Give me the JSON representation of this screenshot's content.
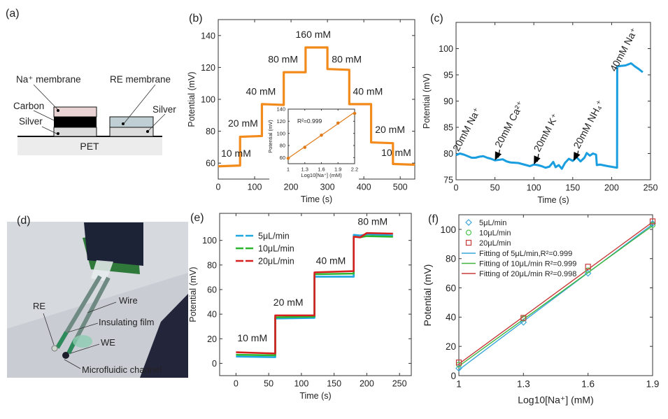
{
  "diagram_a": {
    "label": "(a)",
    "na_membrane": "Na⁺ membrane",
    "re_membrane": "RE membrane",
    "carbon": "Carbon",
    "silver_left": "Silver",
    "silver_right": "Silver",
    "substrate": "PET"
  },
  "photo_d": {
    "label": "(d)",
    "re": "RE",
    "wire": "Wire",
    "insulating_film": "Insulating film",
    "we": "WE",
    "microfluidic_channel": "Microfluidic channel"
  },
  "chart_data": [
    {
      "id": "b",
      "label": "(b)",
      "type": "line",
      "xlabel": "Time (s)",
      "ylabel": "Potential (mV)",
      "xlim": [
        0,
        540
      ],
      "ylim": [
        50,
        150
      ],
      "xticks": [
        0,
        100,
        200,
        300,
        400,
        500
      ],
      "yticks": [
        60,
        80,
        100,
        120,
        140
      ],
      "grid": false,
      "series": [
        {
          "name": "Potential",
          "color": "#f28a1c",
          "x": [
            0,
            60,
            60,
            120,
            120,
            180,
            180,
            240,
            240,
            300,
            300,
            360,
            360,
            420,
            420,
            480,
            480,
            540
          ],
          "y": [
            58,
            58.5,
            76.5,
            77,
            97,
            96.5,
            117,
            117,
            132.5,
            132.5,
            119,
            118.5,
            97,
            97,
            73,
            72.5,
            59.5,
            59
          ]
        }
      ],
      "annotations": [
        "10 mM",
        "20 mM",
        "40 mM",
        "80 mM",
        "160 mM",
        "80 mM",
        "40 mM",
        "20 mM",
        "10 mM"
      ],
      "inset": {
        "type": "line",
        "xlabel": "Log10[Na⁺] (mM)",
        "ylabel": "Potential (mV)",
        "xlim": [
          1,
          2.2
        ],
        "ylim": [
          50,
          140
        ],
        "xticks": [
          1,
          1.3,
          1.6,
          1.9,
          2.2
        ],
        "yticks": [
          60,
          80,
          100,
          120,
          140
        ],
        "x": [
          1,
          1.3,
          1.6,
          1.9,
          2.2
        ],
        "y": [
          59,
          77,
          97,
          117,
          133
        ],
        "fit": [
          [
            1,
            59
          ],
          [
            2.2,
            135
          ]
        ],
        "r2_label": "R²=0.999",
        "color": "#e07b1a"
      }
    },
    {
      "id": "c",
      "label": "(c)",
      "type": "line",
      "xlabel": "Time (s)",
      "ylabel": "Potential (mV)",
      "xlim": [
        0,
        250
      ],
      "ylim": [
        75,
        105
      ],
      "xticks": [
        0,
        50,
        100,
        150,
        200,
        250
      ],
      "yticks": [
        75,
        80,
        85,
        90,
        95,
        100
      ],
      "grid": false,
      "series": [
        {
          "name": "Potential",
          "color": "#1a9ee0",
          "x": [
            0,
            5,
            10,
            15,
            20,
            25,
            30,
            35,
            40,
            45,
            50,
            55,
            60,
            65,
            70,
            80,
            90,
            95,
            100,
            105,
            110,
            115,
            120,
            125,
            128,
            132,
            136,
            140,
            145,
            150,
            155,
            160,
            165,
            168,
            172,
            176,
            180,
            181,
            185,
            195,
            207,
            207.2,
            212,
            218,
            225,
            230,
            235,
            240
          ],
          "y": [
            79.7,
            80,
            79.8,
            79.5,
            79.2,
            79.2,
            79.4,
            79.5,
            79.2,
            79,
            78.7,
            78.8,
            78.9,
            78.5,
            78.3,
            78.2,
            77.8,
            77.6,
            77.9,
            77.8,
            77.6,
            77.3,
            77.5,
            78.4,
            77.4,
            77.8,
            77.1,
            78.2,
            79,
            78.6,
            79.3,
            78.5,
            79.2,
            80.1,
            79.6,
            80,
            79.8,
            77.8,
            77.9,
            77.6,
            77.3,
            96.6,
            96.7,
            96.8,
            97.2,
            96.6,
            96.1,
            95.5
          ]
        }
      ],
      "annotations": [
        "20mM Na⁺",
        "20mM Ca²⁺",
        "20mM K⁺",
        "20mM NH₄⁺",
        "40mM Na⁺"
      ],
      "arrow_targets": [
        [
          50,
          78.7
        ],
        [
          100,
          77.9
        ],
        [
          151,
          78.6
        ]
      ]
    },
    {
      "id": "e",
      "label": "(e)",
      "type": "line",
      "xlabel": "Time (s)",
      "ylabel": "Potential (mV)",
      "xlim": [
        -25,
        268
      ],
      "ylim": [
        -10,
        122
      ],
      "xticks": [
        0,
        50,
        100,
        150,
        200,
        250
      ],
      "yticks": [
        0,
        20,
        40,
        60,
        80,
        100
      ],
      "grid": false,
      "legend": "top-left",
      "series": [
        {
          "name": "5μL/min",
          "color": "#1fa7e0",
          "x": [
            0,
            60,
            60,
            120,
            120,
            180,
            180,
            190,
            200,
            240
          ],
          "y": [
            5.5,
            5,
            36.5,
            37,
            70.5,
            70.5,
            104.5,
            104,
            105,
            104
          ]
        },
        {
          "name": "10μL/min",
          "color": "#2db52d",
          "x": [
            0,
            60,
            60,
            120,
            120,
            180,
            180,
            190,
            200,
            240
          ],
          "y": [
            7,
            6.5,
            37.5,
            38,
            72.5,
            73,
            103,
            102.5,
            103.5,
            103
          ]
        },
        {
          "name": "20μL/min",
          "color": "#d62020",
          "x": [
            0,
            60,
            60,
            120,
            120,
            180,
            180,
            190,
            200,
            240
          ],
          "y": [
            9,
            8,
            39,
            39,
            74,
            75,
            103,
            102.5,
            106,
            105.5
          ]
        }
      ],
      "annotations": [
        "10 mM",
        "20 mM",
        "40 mM",
        "80 mM"
      ]
    },
    {
      "id": "f",
      "label": "(f)",
      "type": "scatter",
      "xlabel": "Log10[Na⁺] (mM)",
      "ylabel": "Potential (mV)",
      "xlim": [
        1,
        1.9
      ],
      "ylim": [
        0,
        110
      ],
      "xticks": [
        1,
        1.3,
        1.6,
        1.9
      ],
      "yticks": [
        0,
        20,
        40,
        60,
        80,
        100
      ],
      "grid": false,
      "legend": "top-left",
      "series": [
        {
          "name": "5μL/min",
          "marker": "diamond",
          "color": "#3aa6d8",
          "x": [
            1,
            1.3,
            1.6,
            1.9
          ],
          "y": [
            5,
            36.5,
            70,
            104
          ]
        },
        {
          "name": "10μL/min",
          "marker": "circle",
          "color": "#4cc44c",
          "x": [
            1,
            1.3,
            1.6,
            1.9
          ],
          "y": [
            7.5,
            39,
            72,
            103
          ]
        },
        {
          "name": "20μL/min",
          "marker": "square",
          "color": "#c83a3a",
          "x": [
            1,
            1.3,
            1.6,
            1.9
          ],
          "y": [
            9,
            39.5,
            74.5,
            105.5
          ]
        }
      ],
      "fits": [
        {
          "name": "Fitting of 5μL/min,R²=0.999",
          "color": "#3aa6d8",
          "x": [
            1,
            1.9
          ],
          "y": [
            4,
            103.5
          ]
        },
        {
          "name": "Fitting of 10μL/min R²=0.999",
          "color": "#3fb53f",
          "x": [
            1,
            1.9
          ],
          "y": [
            6.5,
            102.5
          ]
        },
        {
          "name": "Fitting of 20μL/min R²=0.998",
          "color": "#c83a3a",
          "x": [
            1,
            1.9
          ],
          "y": [
            8,
            105
          ]
        }
      ]
    }
  ]
}
